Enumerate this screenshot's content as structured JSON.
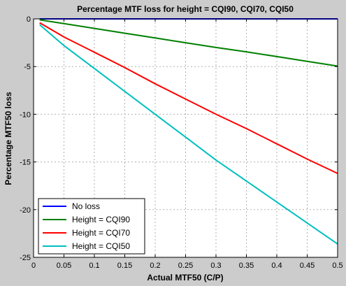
{
  "chart_data": {
    "type": "line",
    "title": "Percentage MTF loss for height = CQI90, CQI70, CQI50",
    "xlabel": "Actual MTF50 (C/P)",
    "ylabel": "Percentage MTF50 loss",
    "xlim": [
      0,
      0.5
    ],
    "ylim": [
      -25,
      0
    ],
    "xticks": [
      0,
      0.05,
      0.1,
      0.15,
      0.2,
      0.25,
      0.3,
      0.35,
      0.4,
      0.45,
      0.5
    ],
    "xtick_labels": [
      "0",
      "0.05",
      "0.1",
      "0.15",
      "0.2",
      "0.25",
      "0.3",
      "0.35",
      "0.4",
      "0.45",
      "0.5"
    ],
    "yticks": [
      0,
      -5,
      -10,
      -15,
      -20,
      -25
    ],
    "ytick_labels": [
      "0",
      "-5",
      "-10",
      "-15",
      "-20",
      "-25"
    ],
    "grid": true,
    "legend_position": "bottom-left",
    "series": [
      {
        "name": "No loss",
        "color": "#0000ff",
        "x": [
          0.01,
          0.5
        ],
        "y": [
          0,
          0
        ]
      },
      {
        "name": "Height = CQI90",
        "color": "#008000",
        "x": [
          0.01,
          0.05,
          0.1,
          0.15,
          0.2,
          0.25,
          0.3,
          0.35,
          0.4,
          0.45,
          0.5
        ],
        "y": [
          -0.1,
          -0.5,
          -1.0,
          -1.5,
          -2.0,
          -2.5,
          -3.0,
          -3.45,
          -3.95,
          -4.45,
          -4.95
        ]
      },
      {
        "name": "Height = CQI70",
        "color": "#ff0000",
        "x": [
          0.01,
          0.05,
          0.1,
          0.15,
          0.2,
          0.25,
          0.3,
          0.35,
          0.4,
          0.45,
          0.5
        ],
        "y": [
          -0.4,
          -1.9,
          -3.5,
          -5.1,
          -6.8,
          -8.4,
          -10.0,
          -11.5,
          -13.1,
          -14.7,
          -16.2
        ]
      },
      {
        "name": "Height = CQI50",
        "color": "#00bfbf",
        "x": [
          0.01,
          0.05,
          0.1,
          0.15,
          0.2,
          0.25,
          0.3,
          0.35,
          0.4,
          0.45,
          0.5
        ],
        "y": [
          -0.6,
          -2.8,
          -5.2,
          -7.6,
          -10.0,
          -12.4,
          -14.8,
          -17.0,
          -19.2,
          -21.4,
          -23.6
        ]
      }
    ]
  }
}
